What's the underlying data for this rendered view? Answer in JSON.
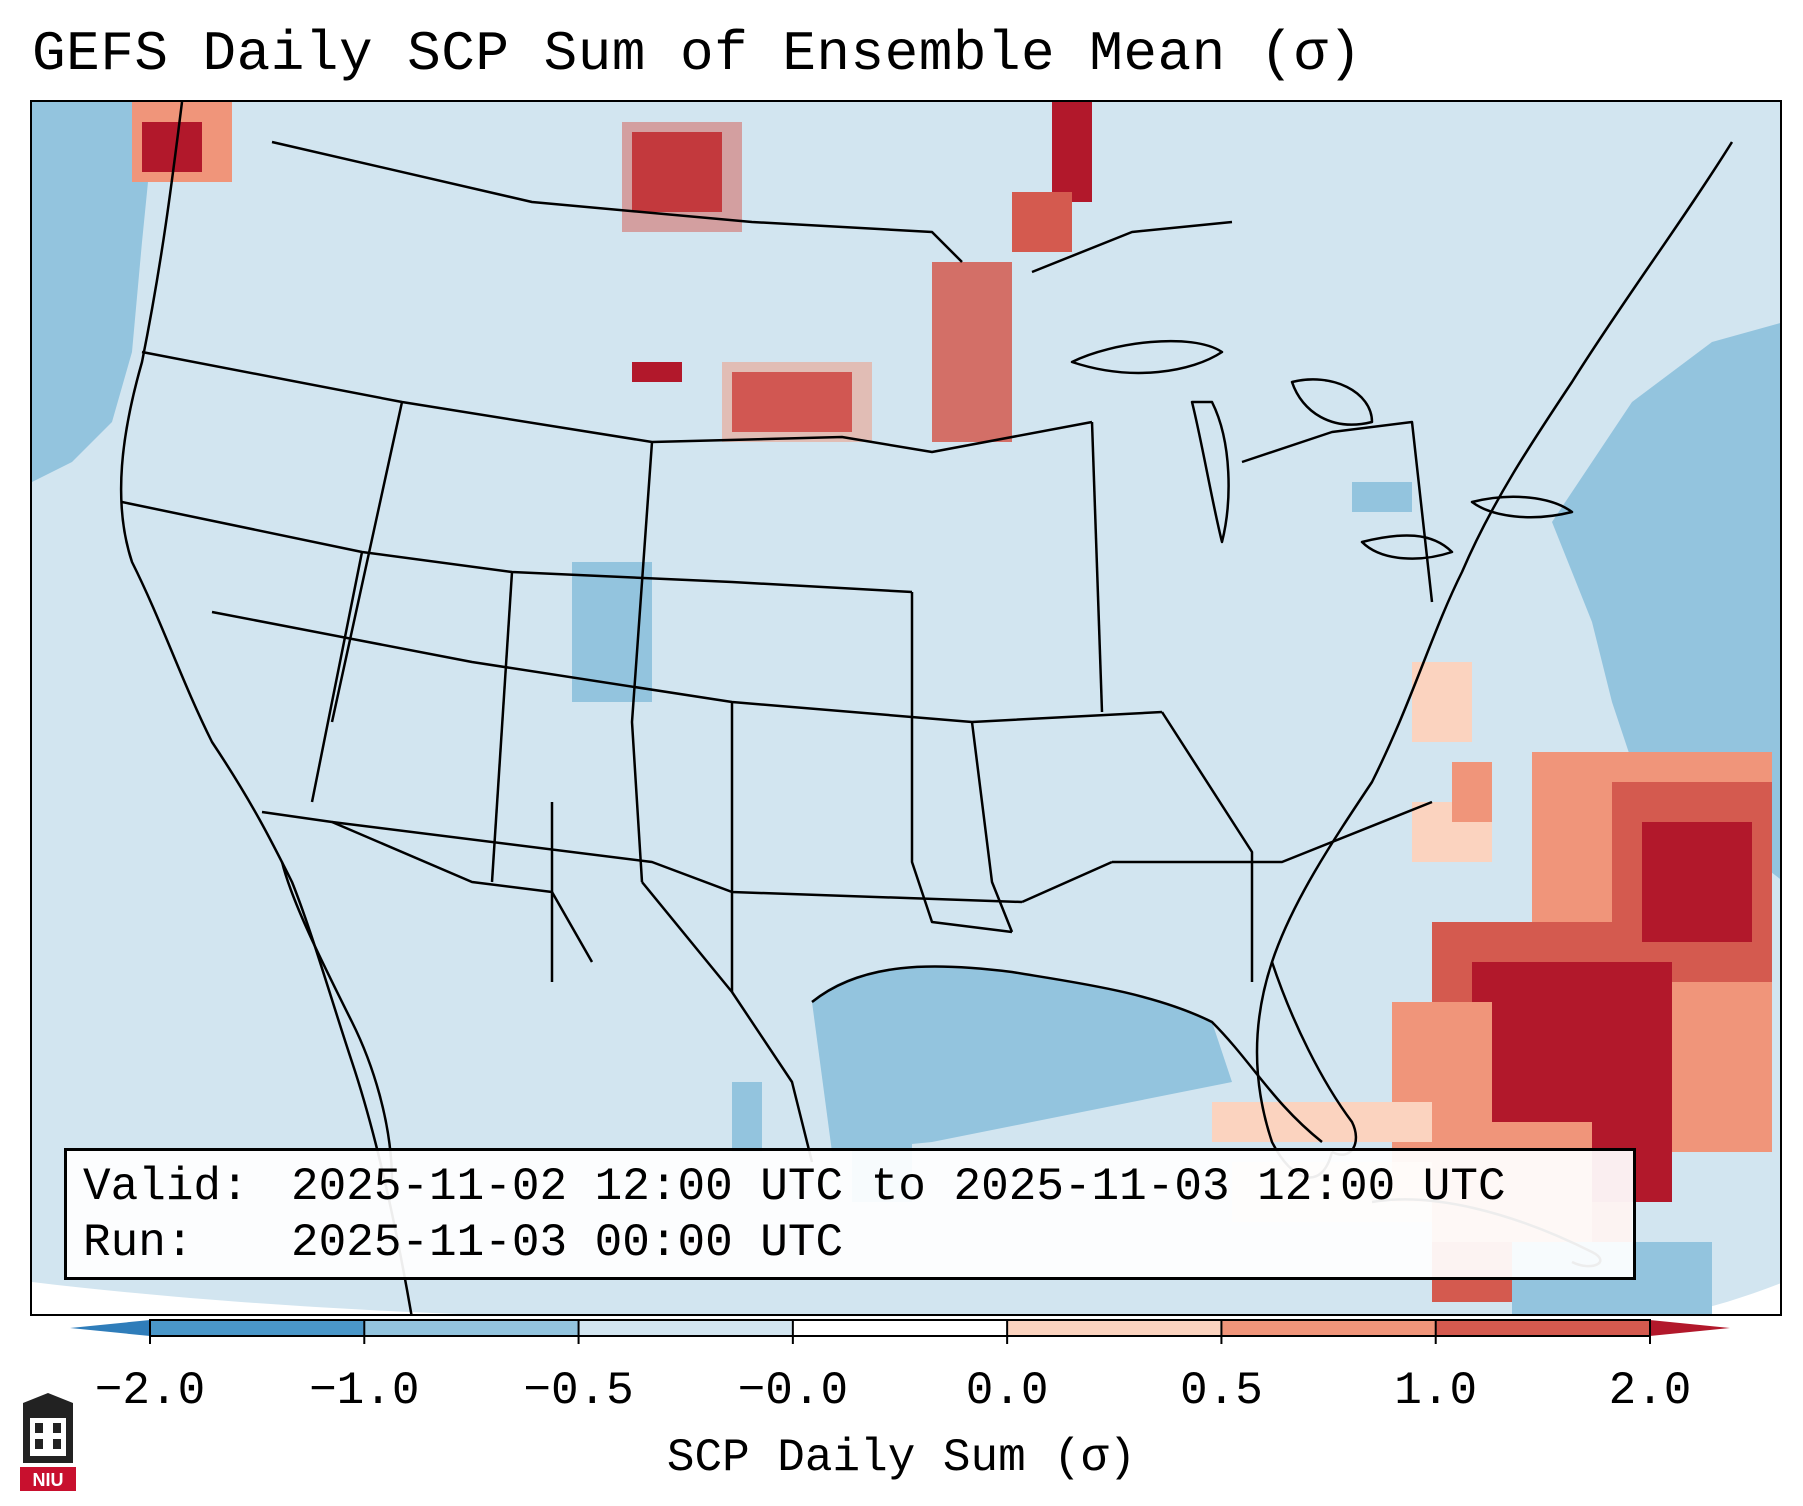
{
  "title": "GEFS Daily SCP Sum of Ensemble Mean (σ)",
  "info": {
    "valid_label": "Valid:",
    "valid_value": "2025-11-02 12:00 UTC to 2025-11-03 12:00 UTC",
    "run_label": "Run:",
    "run_value": "2025-11-03 00:00 UTC"
  },
  "colorbar": {
    "title": "SCP Daily Sum (σ)",
    "tick_labels": [
      "−2.0",
      "−1.0",
      "−0.5",
      "−0.0",
      "0.0",
      "0.5",
      "1.0",
      "2.0"
    ],
    "colors": [
      "#2f7dba",
      "#4a97c9",
      "#93c4de",
      "#d2e5f0",
      "#ffffff",
      "#fbd3bf",
      "#f0957a",
      "#d45a4f",
      "#b2182b"
    ]
  },
  "map": {
    "region": "Contiguous United States",
    "ocean_color": "#93c4de",
    "land_color": "#d2e5f0",
    "high_color": "#b2182b"
  },
  "logo": {
    "text": "NIU",
    "icon": "niu-logo-icon"
  }
}
